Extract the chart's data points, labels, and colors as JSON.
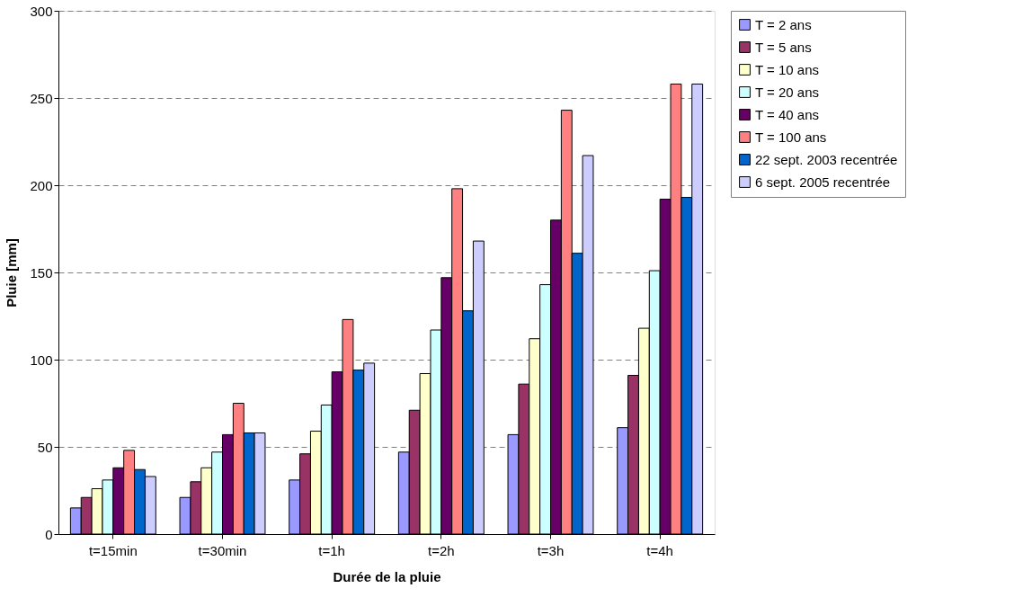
{
  "chart_data": {
    "type": "bar",
    "xlabel": "Durée de la pluie",
    "ylabel": "Pluie [mm]",
    "categories": [
      "t=15min",
      "t=30min",
      "t=1h",
      "t=2h",
      "t=3h",
      "t=4h"
    ],
    "series": [
      {
        "name": "T = 2 ans",
        "color": "#9999ff",
        "values": [
          15,
          21,
          31,
          47,
          57,
          61
        ]
      },
      {
        "name": "T = 5 ans",
        "color": "#993366",
        "values": [
          21,
          30,
          46,
          71,
          86,
          91
        ]
      },
      {
        "name": "T = 10 ans",
        "color": "#ffffcc",
        "values": [
          26,
          38,
          59,
          92,
          112,
          118
        ]
      },
      {
        "name": "T = 20 ans",
        "color": "#ccffff",
        "values": [
          31,
          47,
          74,
          117,
          143,
          151
        ]
      },
      {
        "name": "T = 40 ans",
        "color": "#660066",
        "values": [
          38,
          57,
          93,
          147,
          180,
          192
        ]
      },
      {
        "name": "T = 100 ans",
        "color": "#ff8080",
        "values": [
          48,
          75,
          123,
          198,
          243,
          258
        ]
      },
      {
        "name": "22 sept. 2003 recentrée",
        "color": "#0066cc",
        "values": [
          37,
          58,
          94,
          128,
          161,
          193
        ]
      },
      {
        "name": "6 sept. 2005 recentrée",
        "color": "#ccccff",
        "values": [
          33,
          58,
          98,
          168,
          217,
          258
        ]
      }
    ],
    "ylim": [
      0,
      300
    ],
    "yticks": [
      0,
      50,
      100,
      150,
      200,
      250,
      300
    ],
    "grid": "y",
    "legend": "right"
  }
}
